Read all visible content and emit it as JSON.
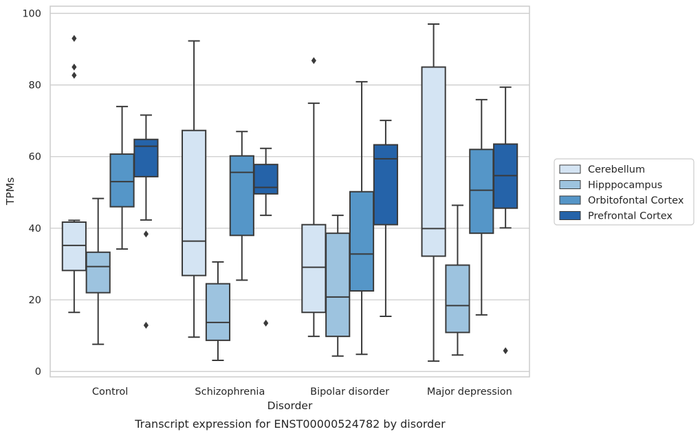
{
  "chart_data": {
    "type": "box",
    "xlabel": "Disorder",
    "ylabel": "TPMs",
    "caption": "Transcript expression for ENST00000524782 by disorder",
    "ylim": [
      -1.5,
      102
    ],
    "yticks": [
      0,
      20,
      40,
      60,
      80,
      100
    ],
    "grid": "horizontal",
    "legend_position": "right",
    "categories": [
      "Control",
      "Schizophrenia",
      "Bipolar disorder",
      "Major depression"
    ],
    "series": [
      {
        "name": "Cerebellum",
        "color": "#d4e4f3",
        "boxes": [
          {
            "whisker_low": 16.5,
            "q1": 28.2,
            "median": 35.2,
            "q3": 41.7,
            "whisker_high": 42.2,
            "outliers": [
              82.7,
              85.0,
              93.0
            ]
          },
          {
            "whisker_low": 9.6,
            "q1": 26.8,
            "median": 36.4,
            "q3": 67.3,
            "whisker_high": 92.3,
            "outliers": []
          },
          {
            "whisker_low": 9.8,
            "q1": 16.5,
            "median": 29.1,
            "q3": 41.0,
            "whisker_high": 74.9,
            "outliers": [
              86.8
            ]
          },
          {
            "whisker_low": 2.9,
            "q1": 32.2,
            "median": 39.9,
            "q3": 85.0,
            "whisker_high": 97.0,
            "outliers": []
          }
        ]
      },
      {
        "name": "Hipppocampus",
        "color": "#9dc3df",
        "boxes": [
          {
            "whisker_low": 7.6,
            "q1": 22.0,
            "median": 29.3,
            "q3": 33.3,
            "whisker_high": 48.3,
            "outliers": []
          },
          {
            "whisker_low": 3.1,
            "q1": 8.7,
            "median": 13.7,
            "q3": 24.5,
            "whisker_high": 30.6,
            "outliers": []
          },
          {
            "whisker_low": 4.3,
            "q1": 9.8,
            "median": 20.8,
            "q3": 38.6,
            "whisker_high": 43.6,
            "outliers": []
          },
          {
            "whisker_low": 4.6,
            "q1": 10.9,
            "median": 18.4,
            "q3": 29.7,
            "whisker_high": 46.4,
            "outliers": []
          }
        ]
      },
      {
        "name": "Orbitofontal Cortex",
        "color": "#5596c8",
        "boxes": [
          {
            "whisker_low": 34.2,
            "q1": 46.0,
            "median": 53.0,
            "q3": 60.7,
            "whisker_high": 74.0,
            "outliers": []
          },
          {
            "whisker_low": 25.5,
            "q1": 38.0,
            "median": 55.6,
            "q3": 60.2,
            "whisker_high": 67.0,
            "outliers": []
          },
          {
            "whisker_low": 4.8,
            "q1": 22.5,
            "median": 32.8,
            "q3": 50.2,
            "whisker_high": 80.9,
            "outliers": []
          },
          {
            "whisker_low": 15.8,
            "q1": 38.6,
            "median": 50.6,
            "q3": 62.0,
            "whisker_high": 75.9,
            "outliers": []
          }
        ]
      },
      {
        "name": "Prefrontal Cortex",
        "color": "#2563a9",
        "boxes": [
          {
            "whisker_low": 42.3,
            "q1": 54.4,
            "median": 62.9,
            "q3": 64.8,
            "whisker_high": 71.6,
            "outliers": [
              12.9,
              38.4
            ]
          },
          {
            "whisker_low": 43.6,
            "q1": 49.6,
            "median": 51.4,
            "q3": 57.8,
            "whisker_high": 62.3,
            "outliers": [
              13.5
            ]
          },
          {
            "whisker_low": 15.4,
            "q1": 41.0,
            "median": 59.4,
            "q3": 63.3,
            "whisker_high": 70.1,
            "outliers": []
          },
          {
            "whisker_low": 40.1,
            "q1": 45.6,
            "median": 54.7,
            "q3": 63.5,
            "whisker_high": 79.4,
            "outliers": [
              5.8
            ]
          }
        ]
      }
    ]
  }
}
